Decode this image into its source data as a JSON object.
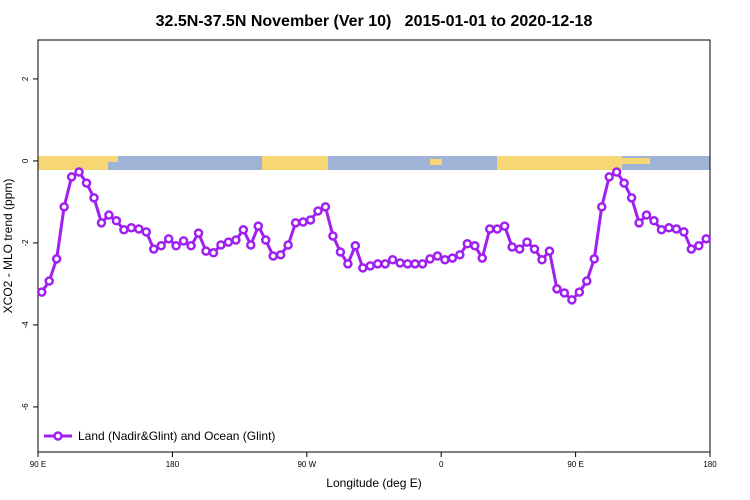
{
  "chart_data": {
    "type": "line",
    "title": "32.5N-37.5N November (Ver 10)   2015-01-01 to 2020-12-18",
    "x_label": "Longitude (deg E)",
    "y_label": "XCO2 - MLO trend (ppm)",
    "xlim": [
      90,
      540
    ],
    "ylim": [
      -7.1,
      2.95
    ],
    "xticks": [
      {
        "value": 90,
        "label": "90 E"
      },
      180,
      {
        "value": 270,
        "label": "90 W"
      },
      {
        "value": 360,
        "label": "0"
      },
      {
        "value": 450,
        "label": "90 E"
      },
      {
        "value": 540,
        "label": "180"
      }
    ],
    "yticks": [
      -6,
      -4,
      -2,
      0,
      2
    ],
    "legend": "bottom-left",
    "series": [
      {
        "name": "Land (Nadir&Glint) and Ocean (Glint)",
        "color": "#a020f0",
        "x": [
          92.5,
          97.5,
          102.5,
          107.5,
          112.5,
          117.5,
          122.5,
          127.5,
          132.5,
          137.5,
          142.5,
          147.5,
          152.5,
          157.5,
          162.5,
          167.5,
          172.5,
          177.5,
          182.5,
          187.5,
          192.5,
          197.5,
          202.5,
          207.5,
          212.5,
          217.5,
          222.5,
          227.5,
          232.5,
          237.5,
          242.5,
          247.5,
          252.5,
          257.5,
          262.5,
          267.5,
          272.5,
          277.5,
          282.5,
          287.5,
          292.5,
          297.5,
          302.5,
          307.5,
          312.5,
          317.5,
          322.5,
          327.5,
          332.5,
          337.5,
          342.5,
          347.5,
          352.5,
          357.5,
          362.5,
          367.5,
          372.5,
          377.5,
          382.5,
          387.5,
          392.5,
          397.5,
          402.5,
          407.5,
          412.5,
          417.5,
          422.5,
          427.5,
          432.5,
          437.5,
          442.5,
          447.5,
          452.5,
          457.5,
          462.5,
          467.5,
          472.5,
          477.5,
          482.5,
          487.5,
          492.5,
          497.5,
          502.5,
          507.5,
          512.5,
          517.5,
          522.5,
          527.5,
          532.5,
          537.5
        ],
        "values": [
          -3.2,
          -2.93,
          -2.39,
          -1.12,
          -0.39,
          -0.27,
          -0.54,
          -0.9,
          -1.51,
          -1.32,
          -1.46,
          -1.68,
          -1.63,
          -1.66,
          -1.73,
          -2.15,
          -2.07,
          -1.9,
          -2.07,
          -1.95,
          -2.07,
          -1.76,
          -2.2,
          -2.24,
          -2.05,
          -1.98,
          -1.93,
          -1.68,
          -2.05,
          -1.59,
          -1.93,
          -2.32,
          -2.29,
          -2.05,
          -1.51,
          -1.49,
          -1.44,
          -1.22,
          -1.12,
          -1.83,
          -2.22,
          -2.51,
          -2.07,
          -2.61,
          -2.56,
          -2.51,
          -2.51,
          -2.41,
          -2.49,
          -2.51,
          -2.51,
          -2.51,
          -2.39,
          -2.32,
          -2.41,
          -2.37,
          -2.29,
          -2.02,
          -2.07,
          -2.37,
          -1.66,
          -1.66,
          -1.59,
          -2.1,
          -2.15,
          -1.98,
          -2.15,
          -2.41,
          -2.2,
          -3.12,
          -3.22,
          -3.39,
          -3.2,
          -2.93,
          -2.39,
          -1.12,
          -0.39,
          -0.27,
          -0.54,
          -0.9,
          -1.51,
          -1.32,
          -1.46,
          -1.68,
          -1.63,
          -1.66,
          -1.73,
          -2.15,
          -2.07,
          -1.9
        ]
      }
    ]
  }
}
